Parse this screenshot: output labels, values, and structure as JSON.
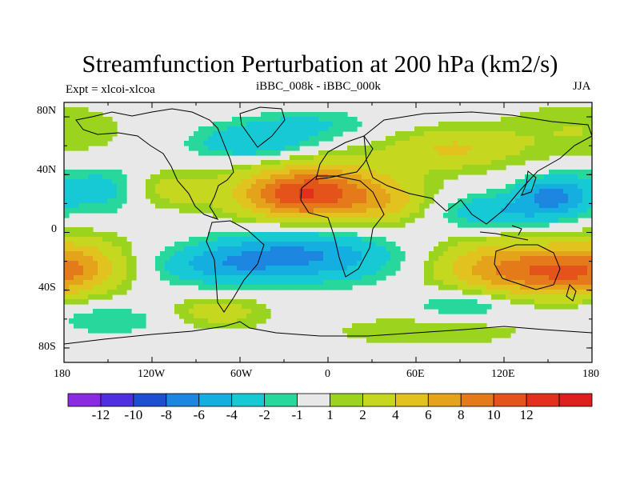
{
  "title": "Streamfunction Perturbation at 200 hPa (km2/s)",
  "left_subtitle": "Expt = xlcoi-xlcoa",
  "center_subtitle": "iBBC_008k - iBBC_000k",
  "right_subtitle": "JJA",
  "lat_ticks": [
    "80N",
    "40N",
    "0",
    "40S",
    "80S"
  ],
  "lon_ticks": [
    "180",
    "120W",
    "60W",
    "0",
    "60E",
    "120E",
    "180"
  ],
  "colorbar": {
    "colors": [
      "#8a2be2",
      "#4f2fe0",
      "#1f4fd1",
      "#1c86e0",
      "#14aee0",
      "#16c9d4",
      "#28d79b",
      "#e8e8e8",
      "#9ad41e",
      "#c6d720",
      "#e2c21e",
      "#e5a31b",
      "#e47a19",
      "#e4541a",
      "#e2301b",
      "#df1e1e"
    ],
    "labels": [
      "-12",
      "-10",
      "-8",
      "-6",
      "-4",
      "-2",
      "-1",
      "1",
      "2",
      "4",
      "6",
      "8",
      "10",
      "12"
    ]
  },
  "field": {
    "centers": [
      [
        26,
        153,
        -6,
        16,
        9
      ],
      [
        14,
        118,
        -4,
        30,
        9
      ],
      [
        62,
        -50,
        -4,
        30,
        9
      ],
      [
        -22,
        -70,
        -5,
        32,
        10
      ],
      [
        -18,
        5,
        -4,
        35,
        12
      ],
      [
        -10,
        -30,
        -3,
        30,
        12
      ],
      [
        30,
        -155,
        -3,
        25,
        12
      ],
      [
        -50,
        95,
        -3,
        25,
        8
      ],
      [
        -60,
        -150,
        -2,
        30,
        8
      ],
      [
        25,
        -20,
        8,
        30,
        12
      ],
      [
        32,
        0,
        5,
        40,
        16
      ],
      [
        20,
        40,
        3,
        20,
        10
      ],
      [
        58,
        85,
        4,
        30,
        10
      ],
      [
        -25,
        125,
        8,
        35,
        14
      ],
      [
        -30,
        165,
        4,
        25,
        10
      ],
      [
        -22,
        -170,
        5,
        25,
        14
      ],
      [
        30,
        -110,
        3,
        20,
        10
      ],
      [
        70,
        170,
        2,
        40,
        15
      ],
      [
        -55,
        -75,
        3,
        25,
        8
      ],
      [
        -68,
        70,
        2,
        50,
        8
      ],
      [
        75,
        -10,
        -2,
        30,
        8
      ]
    ]
  }
}
